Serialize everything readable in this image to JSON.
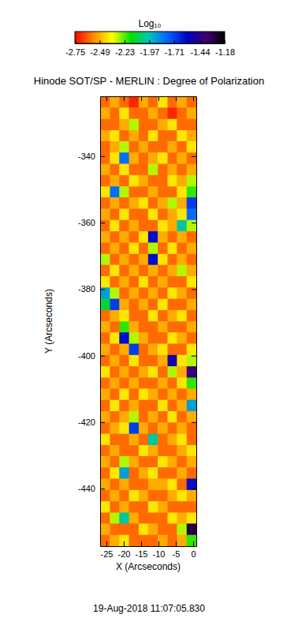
{
  "chart_data": {
    "type": "heatmap",
    "title": "Hinode SOT/SP - MERLIN : Degree of Polarization",
    "x_label": "X (Arcseconds)",
    "y_label": "Y (Arcseconds)",
    "annotations": [
      "19-Aug-2018 11:07:05.830"
    ],
    "xlim": [
      -26.8,
      0.9
    ],
    "ylim": [
      -457.3,
      -322
    ],
    "xticks": [
      -25,
      -20,
      -15,
      -10,
      -5,
      0
    ],
    "yticks": [
      -340,
      -360,
      -380,
      -400,
      -420,
      -440
    ],
    "colors": [
      "#ff0000",
      "#ff8c00",
      "#ffff00",
      "#00e000",
      "#00c0c0",
      "#0060ff",
      "#0000c0",
      "#400070",
      "#000000"
    ],
    "colorbar": {
      "title": "Log₁₀",
      "range": [
        -2.75,
        -1.18
      ],
      "ticks": [
        -2.75,
        -2.49,
        -2.23,
        -1.97,
        -1.71,
        -1.44,
        -1.18
      ]
    },
    "x": [
      -25.4,
      -22.6,
      -19.9,
      -17.1,
      -14.3,
      -11.6,
      -8.8,
      -6.0,
      -3.3,
      -0.5
    ],
    "y": [
      -323.7,
      -327.1,
      -330.5,
      -333.9,
      -337.2,
      -340.6,
      -344.0,
      -347.4,
      -350.8,
      -354.1,
      -357.5,
      -360.9,
      -364.3,
      -367.7,
      -371.1,
      -374.4,
      -377.8,
      -381.2,
      -384.6,
      -388.0,
      -391.4,
      -394.7,
      -398.1,
      -401.5,
      -404.9,
      -408.3,
      -411.6,
      -415.0,
      -418.4,
      -421.8,
      -425.2,
      -428.6,
      -431.9,
      -435.3,
      -438.7,
      -442.1,
      -445.5,
      -448.9,
      -452.2,
      -455.6
    ],
    "z": [
      [
        -2.6,
        -2.5,
        -2.6,
        -2.7,
        -2.5,
        -2.6,
        -2.4,
        -2.6,
        -2.5,
        -2.6
      ],
      [
        -2.5,
        -2.6,
        -2.4,
        -2.6,
        -2.6,
        -2.5,
        -2.6,
        -2.7,
        -2.6,
        -2.5
      ],
      [
        -2.6,
        -2.6,
        -2.5,
        -2.3,
        -2.6,
        -2.6,
        -2.5,
        -2.4,
        -2.6,
        -2.6
      ],
      [
        -2.5,
        -2.4,
        -2.6,
        -2.5,
        -2.6,
        -2.4,
        -2.6,
        -2.6,
        -2.4,
        -2.5
      ],
      [
        -2.6,
        -2.5,
        -2.3,
        -2.6,
        -2.5,
        -2.6,
        -2.6,
        -2.5,
        -2.6,
        -2.4
      ],
      [
        -2.6,
        -2.4,
        -1.8,
        -2.5,
        -2.6,
        -2.5,
        -2.4,
        -2.6,
        -2.5,
        -2.6
      ],
      [
        -2.5,
        -2.6,
        -2.4,
        -2.6,
        -2.6,
        -2.3,
        -2.6,
        -2.5,
        -2.6,
        -2.5
      ],
      [
        -2.6,
        -2.5,
        -2.6,
        -2.4,
        -2.5,
        -2.6,
        -2.6,
        -2.4,
        -2.5,
        -2.3
      ],
      [
        -2.4,
        -1.8,
        -2.3,
        -2.6,
        -2.6,
        -2.5,
        -2.6,
        -2.6,
        -2.4,
        -2.2
      ],
      [
        -2.6,
        -2.5,
        -2.6,
        -2.5,
        -2.4,
        -2.6,
        -2.5,
        -2.3,
        -2.5,
        -1.7
      ],
      [
        -2.5,
        -2.6,
        -2.4,
        -2.6,
        -2.6,
        -2.4,
        -2.6,
        -2.5,
        -2.4,
        -1.8
      ],
      [
        -2.6,
        -2.4,
        -2.6,
        -2.5,
        -2.6,
        -2.6,
        -2.4,
        -2.5,
        -2.0,
        -2.3
      ],
      [
        -2.5,
        -2.6,
        -2.5,
        -2.6,
        -2.4,
        -1.6,
        -2.5,
        -2.6,
        -2.5,
        -2.6
      ],
      [
        -2.6,
        -2.5,
        -2.6,
        -2.4,
        -2.6,
        -2.3,
        -2.6,
        -2.4,
        -2.6,
        -2.5
      ],
      [
        -2.3,
        -2.6,
        -2.5,
        -2.6,
        -2.5,
        -1.6,
        -2.4,
        -2.6,
        -2.5,
        -2.6
      ],
      [
        -2.6,
        -2.4,
        -2.6,
        -2.5,
        -2.6,
        -2.5,
        -2.6,
        -2.5,
        -2.3,
        -2.5
      ],
      [
        -2.4,
        -2.6,
        -2.5,
        -2.6,
        -2.4,
        -2.6,
        -2.5,
        -2.6,
        -2.6,
        -2.4
      ],
      [
        -1.9,
        -2.3,
        -2.6,
        -2.5,
        -2.6,
        -2.5,
        -2.6,
        -2.4,
        -2.5,
        -2.6
      ],
      [
        -2.1,
        -1.7,
        -2.5,
        -2.6,
        -2.5,
        -2.6,
        -2.4,
        -2.6,
        -2.6,
        -2.5
      ],
      [
        -2.6,
        -2.5,
        -2.4,
        -2.6,
        -2.6,
        -2.4,
        -2.6,
        -2.5,
        -2.4,
        -2.6
      ],
      [
        -2.5,
        -2.6,
        -2.2,
        -2.5,
        -2.6,
        -2.6,
        -2.5,
        -2.6,
        -2.6,
        -2.5
      ],
      [
        -2.6,
        -2.4,
        -1.6,
        -2.3,
        -2.5,
        -2.6,
        -2.6,
        -2.4,
        -2.5,
        -2.6
      ],
      [
        -2.5,
        -2.6,
        -2.5,
        -1.7,
        -2.6,
        -2.5,
        -2.4,
        -2.6,
        -2.6,
        -2.4
      ],
      [
        -2.6,
        -2.5,
        -2.6,
        -2.4,
        -2.6,
        -2.6,
        -2.5,
        -1.5,
        -2.4,
        -2.3
      ],
      [
        -2.4,
        -2.6,
        -2.5,
        -2.6,
        -2.5,
        -2.4,
        -2.6,
        -2.3,
        -2.5,
        -1.4
      ],
      [
        -2.6,
        -2.5,
        -2.6,
        -2.5,
        -2.6,
        -2.6,
        -2.5,
        -2.6,
        -2.4,
        -2.2
      ],
      [
        -2.5,
        -2.6,
        -2.4,
        -2.6,
        -2.4,
        -2.5,
        -2.6,
        -2.5,
        -2.6,
        -2.5
      ],
      [
        -2.6,
        -2.4,
        -2.6,
        -2.5,
        -2.6,
        -2.6,
        -2.4,
        -2.6,
        -2.5,
        -1.9
      ],
      [
        -2.5,
        -2.6,
        -2.5,
        -2.3,
        -2.6,
        -2.5,
        -2.6,
        -2.4,
        -2.6,
        -2.5
      ],
      [
        -2.6,
        -2.5,
        -2.4,
        -1.7,
        -2.5,
        -2.6,
        -2.5,
        -2.6,
        -2.5,
        -2.6
      ],
      [
        -2.4,
        -2.6,
        -2.6,
        -2.5,
        -2.6,
        -2.0,
        -2.6,
        -2.5,
        -2.4,
        -2.6
      ],
      [
        -2.6,
        -2.5,
        -2.6,
        -2.6,
        -2.4,
        -2.5,
        -2.6,
        -2.6,
        -2.5,
        -2.4
      ],
      [
        -2.5,
        -2.6,
        -2.3,
        -2.5,
        -2.6,
        -2.6,
        -2.4,
        -2.5,
        -2.6,
        -2.5
      ],
      [
        -2.6,
        -2.4,
        -1.9,
        -2.6,
        -2.5,
        -2.4,
        -2.6,
        -2.6,
        -2.5,
        -2.6
      ],
      [
        -2.5,
        -2.6,
        -2.5,
        -2.6,
        -2.6,
        -2.5,
        -2.5,
        -2.4,
        -2.6,
        -1.6
      ],
      [
        -2.6,
        -2.5,
        -2.6,
        -2.4,
        -2.5,
        -2.6,
        -2.6,
        -2.5,
        -2.4,
        -2.5
      ],
      [
        -2.4,
        -2.6,
        -2.5,
        -2.6,
        -2.6,
        -2.4,
        -2.5,
        -2.6,
        -2.6,
        -2.6
      ],
      [
        -2.6,
        -2.3,
        -2.0,
        -2.5,
        -2.6,
        -2.6,
        -2.6,
        -2.4,
        -2.5,
        -2.4
      ],
      [
        -2.5,
        -2.6,
        -2.6,
        -2.6,
        -2.4,
        -2.5,
        -2.6,
        -2.6,
        -2.3,
        -1.3
      ],
      [
        -2.6,
        -2.5,
        -2.4,
        -2.6,
        -2.6,
        -2.6,
        -2.5,
        -2.6,
        -2.5,
        -2.2
      ]
    ]
  }
}
